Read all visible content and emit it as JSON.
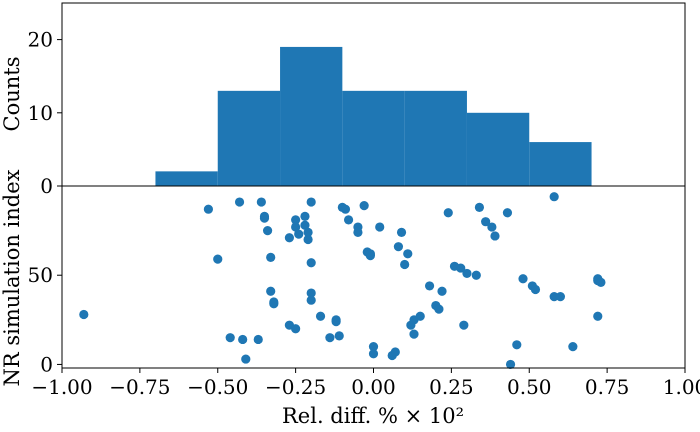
{
  "chart_data": [
    {
      "type": "bar",
      "panel": "histogram",
      "ylabel": "Counts",
      "xlim": [
        -1.0,
        1.0
      ],
      "ylim": [
        0,
        25
      ],
      "yticks": [
        0,
        10,
        20
      ],
      "ytick_labels": [
        "0",
        "10",
        "20"
      ],
      "color": "#1f77b4",
      "bins": [
        {
          "x0": -0.7,
          "x1": -0.5,
          "count": 2
        },
        {
          "x0": -0.5,
          "x1": -0.3,
          "count": 13
        },
        {
          "x0": -0.3,
          "x1": -0.1,
          "count": 19
        },
        {
          "x0": -0.1,
          "x1": 0.1,
          "count": 13
        },
        {
          "x0": 0.1,
          "x1": 0.3,
          "count": 13
        },
        {
          "x0": 0.3,
          "x1": 0.5,
          "count": 10
        },
        {
          "x0": 0.5,
          "x1": 0.7,
          "count": 6
        }
      ]
    },
    {
      "type": "scatter",
      "panel": "scatter",
      "xlabel": "Rel. diff. % × 10²",
      "ylabel": "NR simulation index",
      "xlim": [
        -1.0,
        1.0
      ],
      "ylim": [
        -2,
        100
      ],
      "y_inverted": true,
      "xticks": [
        -1.0,
        -0.75,
        -0.5,
        -0.25,
        0.0,
        0.25,
        0.5,
        0.75,
        1.0
      ],
      "xtick_labels": [
        "−1.00",
        "−0.75",
        "−0.50",
        "−0.25",
        "0.00",
        "0.25",
        "0.50",
        "0.75",
        "1.00"
      ],
      "yticks": [
        0,
        50
      ],
      "ytick_labels": [
        "0",
        "50"
      ],
      "color": "#1f77b4",
      "points": [
        [
          -0.93,
          28
        ],
        [
          -0.53,
          87
        ],
        [
          -0.5,
          59
        ],
        [
          -0.46,
          15
        ],
        [
          -0.43,
          91
        ],
        [
          -0.42,
          14
        ],
        [
          -0.41,
          3
        ],
        [
          -0.37,
          14
        ],
        [
          -0.36,
          91
        ],
        [
          -0.35,
          83
        ],
        [
          -0.35,
          82
        ],
        [
          -0.34,
          75
        ],
        [
          -0.33,
          60
        ],
        [
          -0.33,
          41
        ],
        [
          -0.32,
          34
        ],
        [
          -0.32,
          35
        ],
        [
          -0.27,
          22
        ],
        [
          -0.27,
          71
        ],
        [
          -0.25,
          20
        ],
        [
          -0.25,
          81
        ],
        [
          -0.25,
          77
        ],
        [
          -0.24,
          73
        ],
        [
          -0.22,
          78
        ],
        [
          -0.2,
          91
        ],
        [
          -0.22,
          83
        ],
        [
          -0.21,
          74
        ],
        [
          -0.21,
          70
        ],
        [
          -0.2,
          57
        ],
        [
          -0.2,
          40
        ],
        [
          -0.2,
          36
        ],
        [
          -0.17,
          27
        ],
        [
          -0.14,
          15
        ],
        [
          -0.12,
          25
        ],
        [
          -0.12,
          24
        ],
        [
          -0.11,
          16
        ],
        [
          -0.1,
          88
        ],
        [
          -0.09,
          87
        ],
        [
          -0.08,
          81
        ],
        [
          -0.05,
          77
        ],
        [
          -0.05,
          74
        ],
        [
          -0.03,
          89
        ],
        [
          -0.02,
          63
        ],
        [
          -0.01,
          61
        ],
        [
          -0.01,
          62
        ],
        [
          0.0,
          10
        ],
        [
          0.0,
          6
        ],
        [
          0.02,
          77
        ],
        [
          0.06,
          5
        ],
        [
          0.07,
          7
        ],
        [
          0.08,
          66
        ],
        [
          0.09,
          74
        ],
        [
          0.1,
          56
        ],
        [
          0.11,
          62
        ],
        [
          0.12,
          22
        ],
        [
          0.13,
          17
        ],
        [
          0.13,
          25
        ],
        [
          0.15,
          27
        ],
        [
          0.18,
          44
        ],
        [
          0.2,
          33
        ],
        [
          0.21,
          31
        ],
        [
          0.22,
          41
        ],
        [
          0.24,
          85
        ],
        [
          0.26,
          55
        ],
        [
          0.28,
          54
        ],
        [
          0.29,
          22
        ],
        [
          0.3,
          51
        ],
        [
          0.33,
          50
        ],
        [
          0.34,
          88
        ],
        [
          0.36,
          80
        ],
        [
          0.38,
          77
        ],
        [
          0.39,
          72
        ],
        [
          0.43,
          85
        ],
        [
          0.44,
          0
        ],
        [
          0.46,
          11
        ],
        [
          0.48,
          48
        ],
        [
          0.51,
          44
        ],
        [
          0.52,
          42
        ],
        [
          0.58,
          94
        ],
        [
          0.58,
          38
        ],
        [
          0.6,
          38
        ],
        [
          0.64,
          10
        ],
        [
          0.72,
          27
        ],
        [
          0.72,
          47
        ],
        [
          0.72,
          48
        ],
        [
          0.73,
          46
        ]
      ]
    }
  ]
}
